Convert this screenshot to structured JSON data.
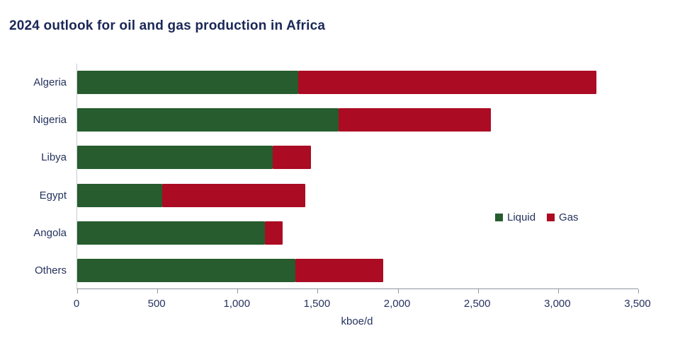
{
  "title": "2024 outlook for oil and gas production in Africa",
  "colors": {
    "title_text": "#1b2757",
    "axis_text": "#25325d",
    "liquid_green": "#265c2e",
    "gas_red": "#ab0b23",
    "axis_line": "#8f96a0"
  },
  "chart_data": {
    "type": "bar",
    "orientation": "horizontal",
    "stacked": true,
    "title": "2024 outlook for oil and gas production in Africa",
    "categories": [
      "Algeria",
      "Nigeria",
      "Libya",
      "Egypt",
      "Angola",
      "Others"
    ],
    "series": [
      {
        "name": "Liquid",
        "color": "#265c2e",
        "values": [
          1380,
          1630,
          1220,
          530,
          1170,
          1360
        ]
      },
      {
        "name": "Gas",
        "color": "#ab0b23",
        "values": [
          1860,
          950,
          240,
          895,
          110,
          550
        ]
      }
    ],
    "xlabel": "kboe/d",
    "ylabel": "",
    "xlim": [
      0,
      3500
    ],
    "xticks": [
      0,
      500,
      1000,
      1500,
      2000,
      2500,
      3000,
      3500
    ],
    "xtick_labels": [
      "0",
      "500",
      "1,000",
      "1,500",
      "2,000",
      "2,500",
      "3,000",
      "3,500"
    ],
    "grid": false,
    "legend_position": "middle-right"
  }
}
